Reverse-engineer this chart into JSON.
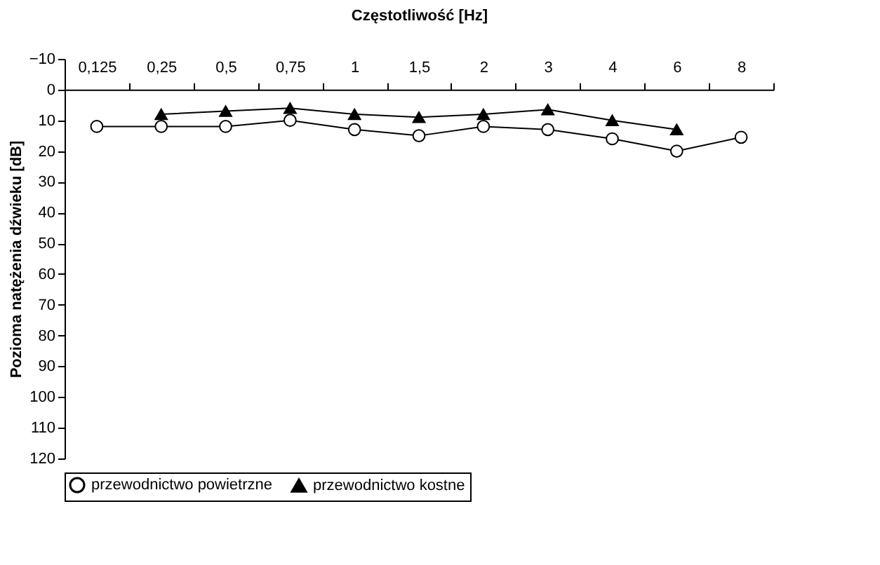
{
  "chart_data": {
    "type": "line",
    "xlabel": "Częstotliwość [Hz]",
    "ylabel": "Pozioma natężenia dźwieku [dB]",
    "categories": [
      "0,125",
      "0,25",
      "0,5",
      "0,75",
      "1",
      "1,5",
      "2",
      "3",
      "4",
      "6",
      "8"
    ],
    "series": [
      {
        "name": "przewodnictwo powietrzne",
        "color": "#000000",
        "marker": "circle",
        "values": [
          12,
          12,
          12,
          10,
          13,
          15,
          12,
          13,
          16,
          20,
          15.5
        ]
      },
      {
        "name": "przewodnictwo kostne",
        "color": "#000000",
        "marker": "triangle",
        "values": [
          null,
          8,
          7,
          6,
          8,
          9,
          8,
          6.5,
          10,
          13,
          null
        ]
      }
    ],
    "ylim": [
      120,
      -10
    ],
    "yticks": [
      -10,
      0,
      10,
      20,
      30,
      40,
      50,
      60,
      70,
      80,
      90,
      100,
      110,
      120
    ],
    "grid": false,
    "legend": "bottom",
    "line_style": "solid"
  }
}
